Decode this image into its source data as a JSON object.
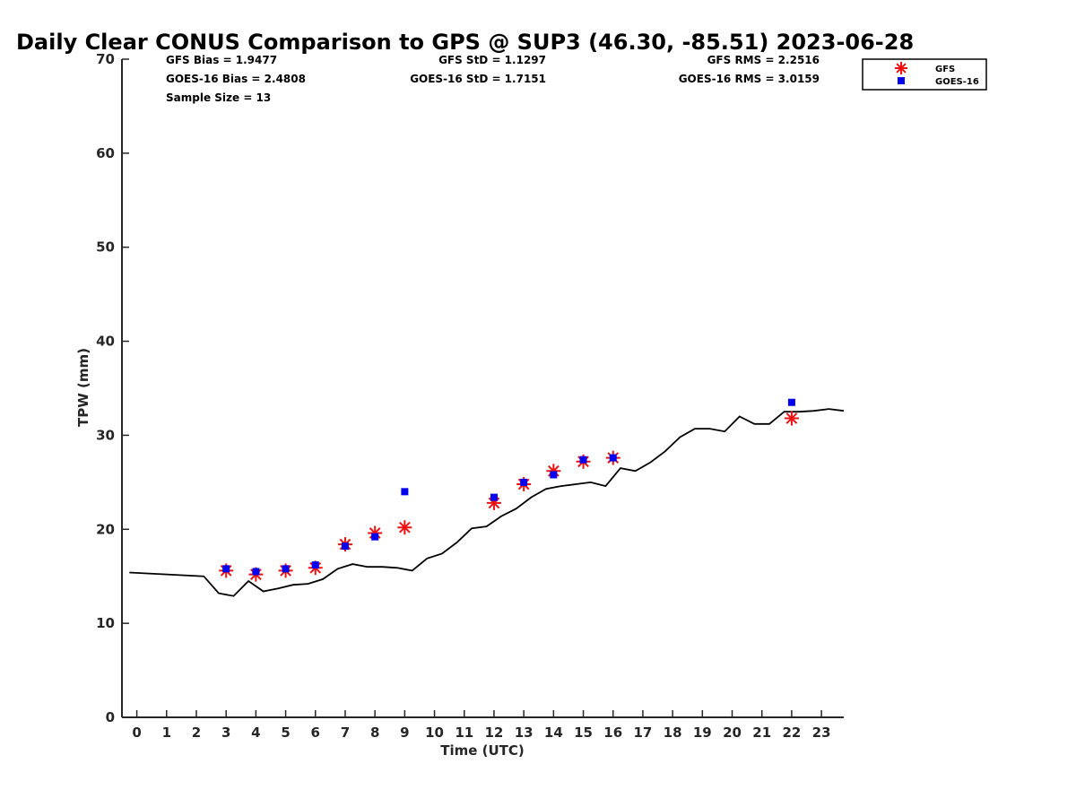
{
  "chart_data": {
    "type": "scatter",
    "title": "Daily Clear CONUS Comparison to GPS @ SUP3 (46.30, -85.51) 2023-06-28",
    "xlabel": "Time (UTC)",
    "ylabel": "TPW (mm)",
    "xlim": [
      -0.5,
      23.75
    ],
    "ylim": [
      0,
      70
    ],
    "x_ticks": [
      0,
      1,
      2,
      3,
      4,
      5,
      6,
      7,
      8,
      9,
      10,
      11,
      12,
      13,
      14,
      15,
      16,
      17,
      18,
      19,
      20,
      21,
      22,
      23
    ],
    "y_ticks": [
      0,
      10,
      20,
      30,
      40,
      50,
      60,
      70
    ],
    "grid": false,
    "legend_position": "top-right",
    "stats": {
      "gfs_bias": "GFS Bias = 1.9477",
      "goes_bias": "GOES-16 Bias = 2.4808",
      "sample_size": "Sample Size = 13",
      "gfs_std": "GFS StD = 1.1297",
      "goes_std": "GOES-16 StD = 1.7151",
      "gfs_rms": "GFS RMS = 2.2516",
      "goes_rms": "GOES-16 RMS = 3.0159"
    },
    "series": [
      {
        "name": "GFS",
        "marker": "asterisk",
        "color": "#ee1111",
        "x": [
          3,
          4,
          5,
          6,
          7,
          8,
          9,
          12,
          13,
          14,
          15,
          16,
          22
        ],
        "y": [
          15.6,
          15.2,
          15.6,
          15.9,
          18.4,
          19.6,
          20.2,
          22.8,
          24.8,
          26.2,
          27.2,
          27.6,
          31.8
        ]
      },
      {
        "name": "GOES-16",
        "marker": "square",
        "color": "#0000ee",
        "x": [
          3,
          4,
          5,
          6,
          7,
          8,
          9,
          12,
          13,
          14,
          15,
          16,
          22
        ],
        "y": [
          15.8,
          15.5,
          15.8,
          16.2,
          18.2,
          19.2,
          24.0,
          23.4,
          25.0,
          25.8,
          27.4,
          27.6,
          33.5
        ]
      },
      {
        "name": "",
        "marker": "line",
        "color": "#000000",
        "x": [
          -0.25,
          2.25,
          2.75,
          3.25,
          3.75,
          4.25,
          4.75,
          5.25,
          5.75,
          6.25,
          6.75,
          7.25,
          7.75,
          8.25,
          8.75,
          9.25,
          9.75,
          10.25,
          10.75,
          11.25,
          11.75,
          12.25,
          12.75,
          13.25,
          13.75,
          14.25,
          14.75,
          15.25,
          15.75,
          16.25,
          16.75,
          17.25,
          17.75,
          18.25,
          18.75,
          19.25,
          19.75,
          20.25,
          20.75,
          21.25,
          21.75,
          22.25,
          22.75,
          23.25,
          23.75
        ],
        "y": [
          15.4,
          15.0,
          13.2,
          12.9,
          14.5,
          13.4,
          13.7,
          14.1,
          14.2,
          14.7,
          15.8,
          16.3,
          16.0,
          16.0,
          15.9,
          15.6,
          16.9,
          17.4,
          18.6,
          20.1,
          20.3,
          21.4,
          22.2,
          23.4,
          24.3,
          24.6,
          24.8,
          25.0,
          24.6,
          26.5,
          26.2,
          27.1,
          28.3,
          29.8,
          30.7,
          30.7,
          30.4,
          32.0,
          31.2,
          31.2,
          32.5,
          32.5,
          32.6,
          32.8,
          32.6
        ]
      }
    ]
  }
}
